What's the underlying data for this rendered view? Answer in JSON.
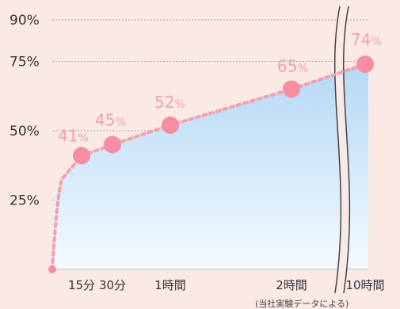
{
  "chart_data": {
    "type": "area",
    "title": "",
    "xlabel": "",
    "ylabel": "",
    "y_ticks": [
      "90%",
      "75%",
      "50%",
      "25%"
    ],
    "x_tick_labels": [
      "15分",
      "30分",
      "1時間",
      "2時間",
      "10時間"
    ],
    "axis_break": "between 2時間 and 10時間",
    "grid": "horizontal dashed",
    "series": [
      {
        "x": [
          "0",
          "15分",
          "30分",
          "1時間",
          "2時間",
          "10時間"
        ],
        "values": [
          0,
          41,
          45,
          52,
          65,
          74
        ],
        "labels": [
          "",
          "41%",
          "45%",
          "52%",
          "65%",
          "74%"
        ]
      }
    ],
    "ylim": [
      0,
      90
    ],
    "colors": {
      "line": "#f3a0ad",
      "marker": "#f48ea0",
      "fill_top": "#b8dbf6",
      "fill_bottom": "#ffffff",
      "grid": "#999999"
    }
  },
  "footnote": "(当社実験データによる)"
}
